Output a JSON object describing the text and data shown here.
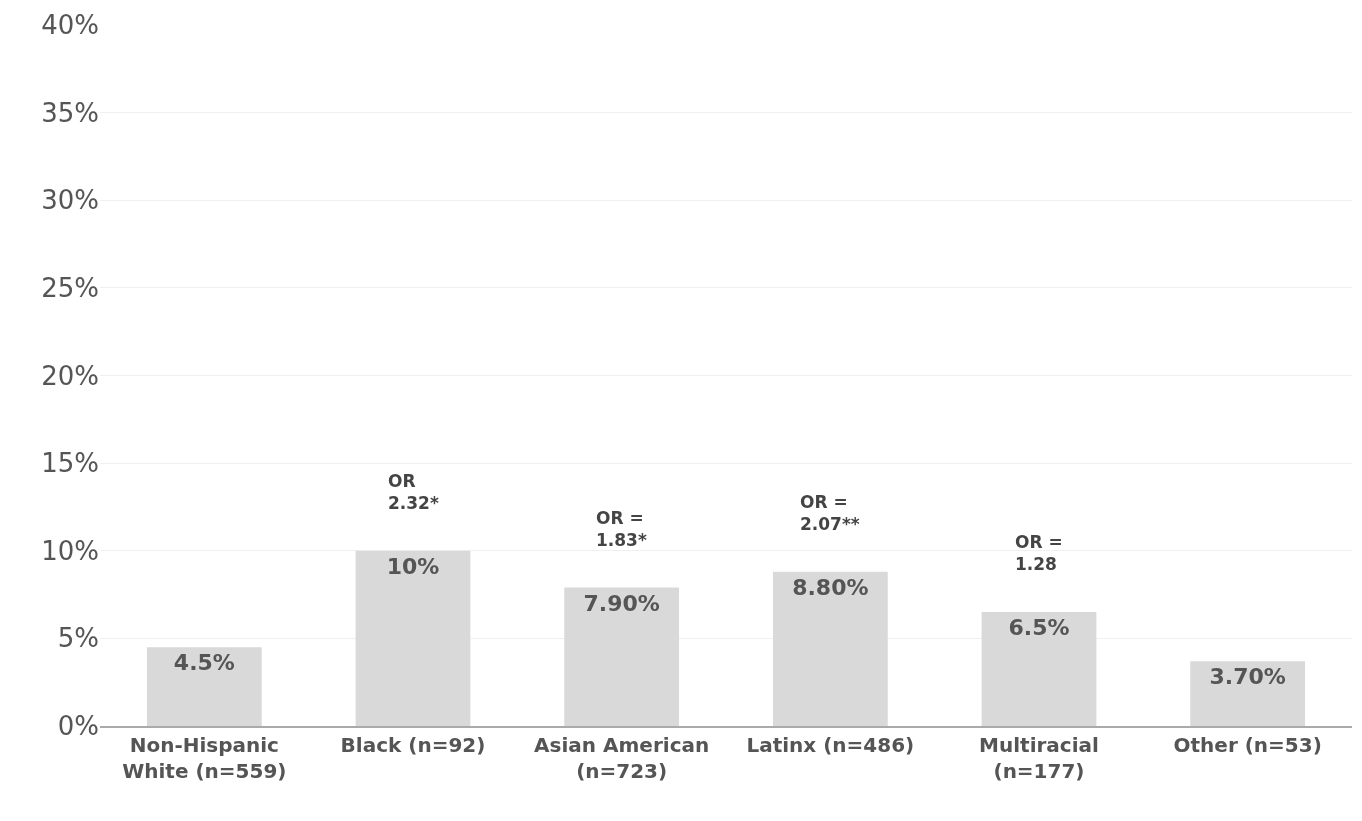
{
  "chart_data": {
    "type": "bar",
    "categories": [
      "Non-Hispanic\nWhite (n=559)",
      "Black (n=92)",
      "Asian American\n(n=723)",
      "Latinx (n=486)",
      "Multiracial\n(n=177)",
      "Other (n=53)"
    ],
    "values": [
      4.5,
      10,
      7.9,
      8.8,
      6.5,
      3.7
    ],
    "value_labels": [
      "4.5%",
      "10%",
      "7.90%",
      "8.80%",
      "6.5%",
      "3.70%"
    ],
    "color": "#d9d9d9",
    "ylim": [
      0,
      40
    ],
    "yticks": [
      {
        "value": 0,
        "label": "0%"
      },
      {
        "value": 5,
        "label": "5%"
      },
      {
        "value": 10,
        "label": "10%"
      },
      {
        "value": 15,
        "label": "15%"
      },
      {
        "value": 20,
        "label": "20%"
      },
      {
        "value": 25,
        "label": "25%"
      },
      {
        "value": 30,
        "label": "30%"
      },
      {
        "value": 35,
        "label": "35%"
      },
      {
        "value": 40,
        "label": "40%"
      }
    ],
    "grid": "y",
    "annotations": [
      {
        "text": "OR\n2.32*",
        "x": "Black (n=92)",
        "y": 10
      },
      {
        "text": "OR =\n1.83*",
        "x": "Asian American\n(n=723)",
        "y": 7.9
      },
      {
        "text": "OR =\n2.07**",
        "x": "Latinx (n=486)",
        "y": 8.8
      },
      {
        "text": "OR =\n1.28",
        "x": "Multiracial\n(n=177)",
        "y": 6.5
      }
    ]
  }
}
